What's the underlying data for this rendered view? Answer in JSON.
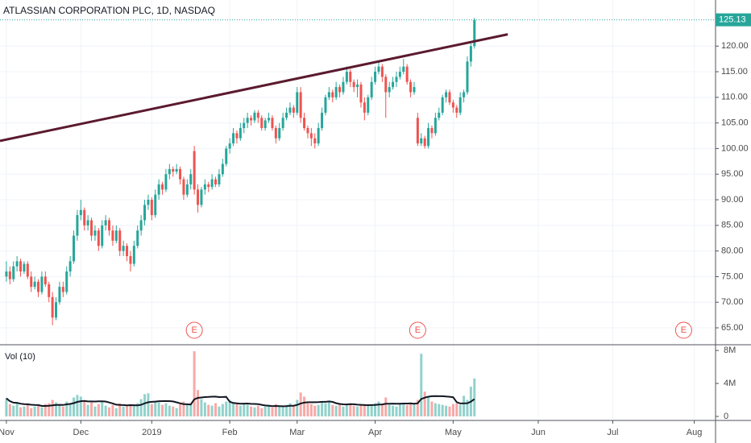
{
  "chart_data": {
    "type": "candlestick",
    "title": "ATLASSIAN CORPORATION PLC, 1D, NASDAQ",
    "up_color": "#26a69a",
    "down_color": "#ef5350",
    "candles": [
      [
        75,
        78,
        74,
        76
      ],
      [
        76,
        77,
        73.5,
        74.5
      ],
      [
        74.5,
        78,
        74,
        77
      ],
      [
        77,
        79,
        76,
        78
      ],
      [
        78,
        78.5,
        75,
        76
      ],
      [
        76,
        78,
        75.5,
        77.5
      ],
      [
        77.5,
        78,
        74.5,
        75
      ],
      [
        75,
        76,
        72,
        73
      ],
      [
        73,
        75,
        72.5,
        74
      ],
      [
        74,
        74.5,
        71,
        72
      ],
      [
        72,
        76,
        71.5,
        75
      ],
      [
        75,
        76,
        73,
        73.5
      ],
      [
        73.5,
        74,
        70,
        71
      ],
      [
        71,
        72,
        65.5,
        67
      ],
      [
        67,
        71,
        66.5,
        70
      ],
      [
        70,
        74,
        69.5,
        73
      ],
      [
        73,
        74,
        71,
        72
      ],
      [
        72,
        77,
        71.5,
        76
      ],
      [
        76,
        79,
        75,
        78
      ],
      [
        78,
        84,
        77.5,
        83
      ],
      [
        83,
        88,
        82,
        87
      ],
      [
        87,
        90,
        86,
        88
      ],
      [
        88,
        88.5,
        84,
        85
      ],
      [
        85,
        87,
        84,
        86
      ],
      [
        86,
        86.5,
        82,
        83
      ],
      [
        83,
        85,
        82,
        84
      ],
      [
        84,
        84.5,
        80,
        81
      ],
      [
        81,
        86,
        80.5,
        85
      ],
      [
        85,
        87,
        84,
        86
      ],
      [
        86,
        86.5,
        83,
        84
      ],
      [
        84,
        85,
        81,
        82
      ],
      [
        82,
        85,
        81.5,
        84
      ],
      [
        84,
        84.5,
        79,
        80
      ],
      [
        80,
        82,
        79,
        81
      ],
      [
        81,
        81.5,
        78,
        79
      ],
      [
        79,
        80,
        76,
        77.5
      ],
      [
        77.5,
        82,
        77,
        81
      ],
      [
        81,
        85,
        80.5,
        84
      ],
      [
        84,
        87,
        83,
        86
      ],
      [
        86,
        90,
        85,
        89
      ],
      [
        89,
        91,
        88,
        90
      ],
      [
        90,
        90.5,
        86,
        87
      ],
      [
        87,
        92,
        86.5,
        91
      ],
      [
        91,
        94,
        90,
        93
      ],
      [
        93,
        93.5,
        91,
        92
      ],
      [
        92,
        96,
        91.5,
        95
      ],
      [
        95,
        97,
        94,
        96
      ],
      [
        96,
        96.5,
        94.5,
        95.5
      ],
      [
        95.5,
        97,
        95,
        96
      ],
      [
        96,
        96.5,
        93,
        94
      ],
      [
        94,
        94.5,
        90,
        91
      ],
      [
        91,
        94,
        90.5,
        93
      ],
      [
        93,
        96,
        92,
        95
      ],
      [
        99.5,
        100.5,
        91,
        92
      ],
      [
        92,
        93,
        87.5,
        89
      ],
      [
        89,
        92.5,
        88.5,
        92
      ],
      [
        92,
        94,
        91,
        93
      ],
      [
        93,
        93.5,
        91.5,
        92.5
      ],
      [
        92.5,
        95,
        92,
        94
      ],
      [
        94,
        94.5,
        92.5,
        93
      ],
      [
        93,
        96,
        92.5,
        95
      ],
      [
        95,
        98,
        94.5,
        97
      ],
      [
        97,
        100.5,
        96.5,
        100
      ],
      [
        100,
        102,
        99,
        101
      ],
      [
        101,
        104,
        100.5,
        103
      ],
      [
        103,
        103.5,
        101,
        102
      ],
      [
        102,
        105,
        101.5,
        104
      ],
      [
        104,
        106,
        103,
        105
      ],
      [
        105,
        107,
        104,
        106
      ],
      [
        106,
        106.5,
        104.5,
        105.5
      ],
      [
        105.5,
        107.5,
        105,
        107
      ],
      [
        107,
        107.5,
        105,
        106
      ],
      [
        106,
        106.5,
        103.5,
        104
      ],
      [
        104,
        106,
        103.5,
        105.5
      ],
      [
        105.5,
        107,
        105,
        106
      ],
      [
        106,
        106.5,
        103.5,
        104
      ],
      [
        104,
        104.5,
        101,
        102
      ],
      [
        102,
        105,
        101.5,
        104
      ],
      [
        104,
        107,
        103.5,
        106
      ],
      [
        106,
        108,
        105.5,
        107
      ],
      [
        107,
        109,
        106.5,
        108
      ],
      [
        108,
        108.5,
        106,
        107
      ],
      [
        107,
        112,
        106.5,
        111
      ],
      [
        111,
        112,
        105,
        106
      ],
      [
        106,
        107,
        103.5,
        104
      ],
      [
        104,
        104.5,
        102,
        103
      ],
      [
        103,
        104,
        100.5,
        102
      ],
      [
        102,
        103,
        100,
        101
      ],
      [
        101,
        105,
        100.5,
        104
      ],
      [
        104,
        108,
        103.5,
        107
      ],
      [
        107,
        110.5,
        106.5,
        110
      ],
      [
        110,
        112,
        109.5,
        111
      ],
      [
        111,
        111.5,
        109,
        110
      ],
      [
        110,
        113,
        109.5,
        112
      ],
      [
        112,
        112.5,
        110,
        111
      ],
      [
        111,
        114,
        110.5,
        113
      ],
      [
        113,
        116,
        112.5,
        115
      ],
      [
        115,
        115.5,
        112,
        113
      ],
      [
        113,
        113.5,
        111,
        112
      ],
      [
        112,
        113.5,
        110,
        112.5
      ],
      [
        112.5,
        113,
        108,
        109
      ],
      [
        109,
        110,
        105.5,
        107
      ],
      [
        107,
        110.5,
        106.5,
        110
      ],
      [
        110,
        114,
        109.5,
        113
      ],
      [
        113,
        116,
        112.5,
        115
      ],
      [
        115,
        117,
        114.5,
        116
      ],
      [
        116,
        116.5,
        113,
        114
      ],
      [
        114,
        114.5,
        106,
        111
      ],
      [
        111,
        113,
        110,
        112
      ],
      [
        112,
        114,
        111.5,
        113
      ],
      [
        113,
        115,
        112,
        114
      ],
      [
        114,
        116,
        113.5,
        115
      ],
      [
        115,
        117.5,
        114.5,
        116
      ],
      [
        116,
        116.5,
        112.5,
        113
      ],
      [
        113,
        113.5,
        110,
        111
      ],
      [
        111,
        113,
        110.5,
        112
      ],
      [
        106,
        107,
        100.5,
        101
      ],
      [
        101,
        103,
        100.5,
        102
      ],
      [
        102,
        102.5,
        100,
        100.5
      ],
      [
        100.5,
        105,
        100,
        104
      ],
      [
        104,
        104.5,
        102,
        103
      ],
      [
        103,
        107,
        102.5,
        106
      ],
      [
        106,
        108,
        105.5,
        107
      ],
      [
        107,
        110.5,
        106.5,
        110
      ],
      [
        110,
        111.5,
        109,
        111
      ],
      [
        111,
        111.5,
        108.5,
        109
      ],
      [
        109,
        109.5,
        107,
        108
      ],
      [
        108,
        108.5,
        106,
        107
      ],
      [
        107,
        111,
        106.5,
        110
      ],
      [
        110,
        111.5,
        109,
        111
      ],
      [
        111,
        118,
        110.5,
        117
      ],
      [
        117,
        120.5,
        116,
        120
      ],
      [
        120,
        125.5,
        119.5,
        125.13
      ]
    ],
    "volumes": [
      2.2,
      1.5,
      1.3,
      1.6,
      1.1,
      1.2,
      1.4,
      1.0,
      1.2,
      1.3,
      1.1,
      1.5,
      1.6,
      2.0,
      1.7,
      1.3,
      1.2,
      1.8,
      1.6,
      2.3,
      2.6,
      2.4,
      1.9,
      1.4,
      1.7,
      1.2,
      1.5,
      1.8,
      1.3,
      1.1,
      1.4,
      1.0,
      1.6,
      1.2,
      1.3,
      1.5,
      1.4,
      1.6,
      2.1,
      2.7,
      2.8,
      1.5,
      1.9,
      1.7,
      1.4,
      1.6,
      1.3,
      1.2,
      1.0,
      1.5,
      1.8,
      1.4,
      1.6,
      7.9,
      3.2,
      2.1,
      1.7,
      1.4,
      1.3,
      1.6,
      1.2,
      1.5,
      1.8,
      2.0,
      1.7,
      1.6,
      1.3,
      1.5,
      1.4,
      1.2,
      1.1,
      1.3,
      1.0,
      1.2,
      1.4,
      1.1,
      1.5,
      1.3,
      1.2,
      1.4,
      1.6,
      1.3,
      2.0,
      2.9,
      2.4,
      1.6,
      1.5,
      1.3,
      1.4,
      1.7,
      1.6,
      1.8,
      1.4,
      1.3,
      1.5,
      1.2,
      1.4,
      1.6,
      1.3,
      1.2,
      1.4,
      1.5,
      1.3,
      1.4,
      1.6,
      1.8,
      1.5,
      2.3,
      1.4,
      1.3,
      1.2,
      1.5,
      1.6,
      1.4,
      1.7,
      1.5,
      2.0,
      7.6,
      3.0,
      2.4,
      1.8,
      1.6,
      1.5,
      1.4,
      1.3,
      1.2,
      1.5,
      1.6,
      1.4,
      2.5,
      2.0,
      3.6,
      4.6
    ],
    "volume_ma": {
      "label": "Vol (10)",
      "period": 10,
      "color": "#131722"
    },
    "xlim": [
      -1.8,
      200
    ],
    "xticks": [
      {
        "value": 0,
        "label": "Nov"
      },
      {
        "value": 21,
        "label": "Dec"
      },
      {
        "value": 41,
        "label": "2019"
      },
      {
        "value": 63,
        "label": "Feb"
      },
      {
        "value": 82,
        "label": "Mar"
      },
      {
        "value": 104,
        "label": "Apr"
      },
      {
        "value": 126,
        "label": "May"
      },
      {
        "value": 150,
        "label": "Jun"
      },
      {
        "value": 171,
        "label": "Jul"
      },
      {
        "value": 194,
        "label": "Aug"
      }
    ],
    "ylim": [
      61.7,
      129
    ],
    "yticks": [
      {
        "value": 65,
        "label": "65.00"
      },
      {
        "value": 70,
        "label": "70.00"
      },
      {
        "value": 75,
        "label": "75.00"
      },
      {
        "value": 80,
        "label": "80.00"
      },
      {
        "value": 85,
        "label": "85.00"
      },
      {
        "value": 90,
        "label": "90.00"
      },
      {
        "value": 95,
        "label": "95.00"
      },
      {
        "value": 100,
        "label": "100.00"
      },
      {
        "value": 105,
        "label": "105.00"
      },
      {
        "value": 110,
        "label": "110.00"
      },
      {
        "value": 115,
        "label": "115.00"
      },
      {
        "value": 120,
        "label": "120.00"
      }
    ],
    "y2lim": [
      0,
      8.5
    ],
    "y2ticks": [
      0,
      {
        "value": 4,
        "label": "4M"
      },
      {
        "value": 8,
        "label": "8M"
      }
    ],
    "grid": true,
    "trendline": {
      "x": [
        -1.8,
        141.4
      ],
      "y": [
        101.5,
        122.3
      ],
      "color": "#5b1a2e"
    },
    "events": [
      {
        "label": "E",
        "x": 53
      },
      {
        "label": "E",
        "x": 116
      },
      {
        "label": "E",
        "x": 191
      }
    ],
    "event_color": "#ef5350"
  }
}
